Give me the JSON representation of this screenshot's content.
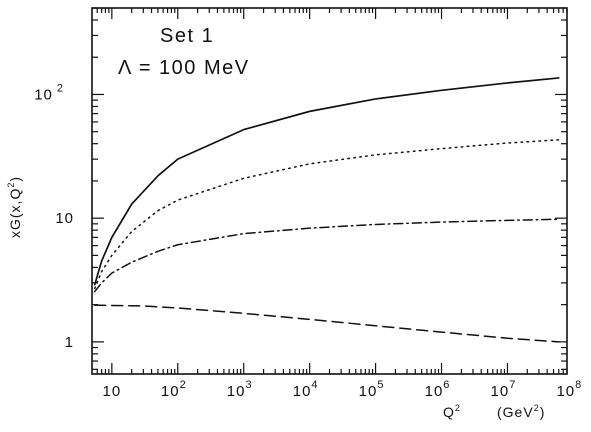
{
  "chart_data": {
    "type": "line",
    "title": "",
    "annotations": [
      "Set  1",
      "Λ  =  100  MeV"
    ],
    "xlabel": {
      "base": "Q",
      "sup": "2",
      "units": "(GeV",
      "units_sup": "2",
      "units_close": ")"
    },
    "ylabel": {
      "text": "xG(x,Q",
      "sup": "2",
      "close": ")"
    },
    "x_scale": "log",
    "y_scale": "log",
    "xlim": [
      5,
      80000000
    ],
    "ylim": [
      0.55,
      500
    ],
    "grid": false,
    "legend": "none",
    "x_ticks": [
      {
        "value": 10,
        "base": "10",
        "exp": ""
      },
      {
        "value": 100,
        "base": "10",
        "exp": "2"
      },
      {
        "value": 1000,
        "base": "10",
        "exp": "3"
      },
      {
        "value": 10000,
        "base": "10",
        "exp": "4"
      },
      {
        "value": 100000,
        "base": "10",
        "exp": "5"
      },
      {
        "value": 1000000,
        "base": "10",
        "exp": "6"
      },
      {
        "value": 10000000,
        "base": "10",
        "exp": "7"
      },
      {
        "value": 100000000,
        "base": "10",
        "exp": "8"
      }
    ],
    "y_ticks": [
      {
        "value": 1,
        "base": "1",
        "exp": ""
      },
      {
        "value": 10,
        "base": "10",
        "exp": ""
      },
      {
        "value": 100,
        "base": "10",
        "exp": "2"
      }
    ],
    "series": [
      {
        "style": "solid",
        "x": [
          5.5,
          7,
          10,
          20,
          50,
          100,
          1000,
          10000,
          100000,
          1000000,
          10000000,
          60000000
        ],
        "y": [
          2.9,
          4.5,
          7,
          13,
          22,
          30,
          52,
          73,
          92,
          108,
          124,
          136
        ]
      },
      {
        "style": "dotted",
        "x": [
          5.5,
          7,
          10,
          20,
          50,
          100,
          1000,
          10000,
          100000,
          1000000,
          10000000,
          60000000
        ],
        "y": [
          2.7,
          3.7,
          5,
          7.8,
          11.5,
          14,
          21,
          27.5,
          32.5,
          36.5,
          40.5,
          43
        ]
      },
      {
        "style": "dashdot",
        "x": [
          5.5,
          7,
          10,
          20,
          50,
          100,
          1000,
          10000,
          100000,
          1000000,
          10000000,
          60000000
        ],
        "y": [
          2.55,
          3,
          3.6,
          4.4,
          5.4,
          6.1,
          7.5,
          8.3,
          8.9,
          9.3,
          9.6,
          9.8
        ]
      },
      {
        "style": "dashed",
        "x": [
          5.5,
          10,
          30,
          100,
          1000,
          10000,
          100000,
          1000000,
          10000000,
          60000000
        ],
        "y": [
          1.98,
          1.97,
          1.95,
          1.88,
          1.7,
          1.52,
          1.35,
          1.2,
          1.07,
          1.0
        ]
      }
    ]
  }
}
